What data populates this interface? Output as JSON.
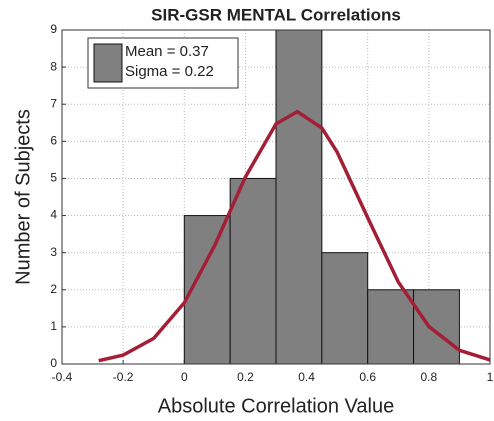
{
  "chart_data": {
    "type": "histogram",
    "title": "SIR-GSR MENTAL Correlations",
    "xlabel": "Absolute Correlation Value",
    "ylabel": "Number of Subjects",
    "bins": [
      0,
      0.15,
      0.3,
      0.45,
      0.6,
      0.75,
      0.9
    ],
    "counts": [
      4,
      5,
      9,
      3,
      2,
      2
    ],
    "color": "#808080",
    "curve": {
      "x": [
        -0.28,
        -0.2,
        -0.1,
        0,
        0.1,
        0.2,
        0.3,
        0.37,
        0.45,
        0.5,
        0.6,
        0.7,
        0.8,
        0.9,
        1.0
      ],
      "values": [
        0.09,
        0.24,
        0.69,
        1.65,
        3.2,
        5.04,
        6.47,
        6.8,
        6.36,
        5.71,
        3.94,
        2.21,
        1.01,
        0.37,
        0.11
      ],
      "color": "#a21f35"
    },
    "legend": [
      "Mean = 0.37",
      "Sigma = 0.22"
    ],
    "xlim": [
      -0.4,
      1
    ],
    "ylim": [
      0,
      9
    ],
    "xticks": [
      -0.4,
      -0.2,
      0,
      0.2,
      0.4,
      0.6,
      0.8,
      1
    ],
    "yticks": [
      0,
      1,
      2,
      3,
      4,
      5,
      6,
      7,
      8,
      9
    ],
    "grid": true
  }
}
